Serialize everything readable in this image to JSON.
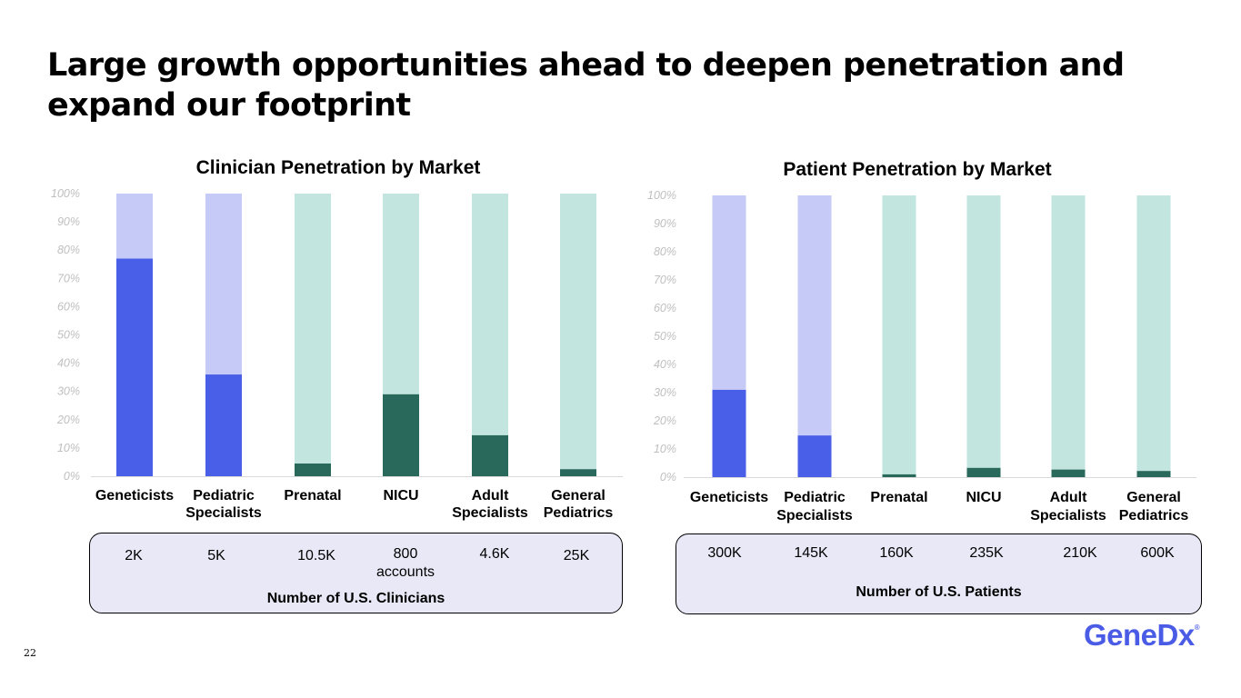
{
  "title": "Large growth opportunities ahead to deepen penetration and expand our footprint",
  "page_number": "22",
  "logo_text": "GeneDx",
  "colors": {
    "existing_blue": "#4a5fe7",
    "remaining_blue": "#c5cbf6",
    "existing_green": "#28695c",
    "remaining_green": "#c2e6df",
    "box_fill": "#e8e8f7"
  },
  "y_ticks": [
    "0%",
    "10%",
    "20%",
    "30%",
    "40%",
    "50%",
    "60%",
    "70%",
    "80%",
    "90%",
    "100%"
  ],
  "clinician": {
    "counts": [
      {
        "value": "2K"
      },
      {
        "value": "5K"
      },
      {
        "value": "10.5K"
      },
      {
        "value": "800",
        "sub": "accounts"
      },
      {
        "value": "4.6K"
      },
      {
        "value": "25K"
      }
    ],
    "counts_caption": "Number of U.S. Clinicians"
  },
  "patient": {
    "counts": [
      {
        "value": "300K"
      },
      {
        "value": "145K"
      },
      {
        "value": "160K"
      },
      {
        "value": "235K"
      },
      {
        "value": "210K"
      },
      {
        "value": "600K"
      }
    ],
    "counts_caption": "Number of U.S. Patients"
  },
  "chart_data": [
    {
      "type": "bar",
      "stacked": true,
      "title": "Clinician Penetration by Market",
      "categories": [
        [
          "Geneticists"
        ],
        [
          "Pediatric",
          "Specialists"
        ],
        [
          "Prenatal"
        ],
        [
          "NICU"
        ],
        [
          "Adult",
          "Specialists"
        ],
        [
          "General",
          "Pediatrics"
        ]
      ],
      "values": [
        77,
        36,
        4.5,
        29,
        14.5,
        2.5
      ],
      "bar_colors": [
        "blue",
        "blue",
        "green",
        "green",
        "green",
        "green"
      ],
      "ylim": [
        0,
        100
      ],
      "y_unit": "%",
      "xlabel": "",
      "ylabel": ""
    },
    {
      "type": "bar",
      "stacked": true,
      "title": "Patient Penetration by Market",
      "categories": [
        [
          "Geneticists"
        ],
        [
          "Pediatric",
          "Specialists"
        ],
        [
          "Prenatal"
        ],
        [
          "NICU"
        ],
        [
          "Adult",
          "Specialists"
        ],
        [
          "General",
          "Pediatrics"
        ]
      ],
      "values": [
        31,
        14.8,
        1,
        3.3,
        2.7,
        2.2
      ],
      "bar_colors": [
        "blue",
        "blue",
        "green",
        "green",
        "green",
        "green"
      ],
      "ylim": [
        0,
        100
      ],
      "y_unit": "%",
      "xlabel": "",
      "ylabel": ""
    }
  ]
}
